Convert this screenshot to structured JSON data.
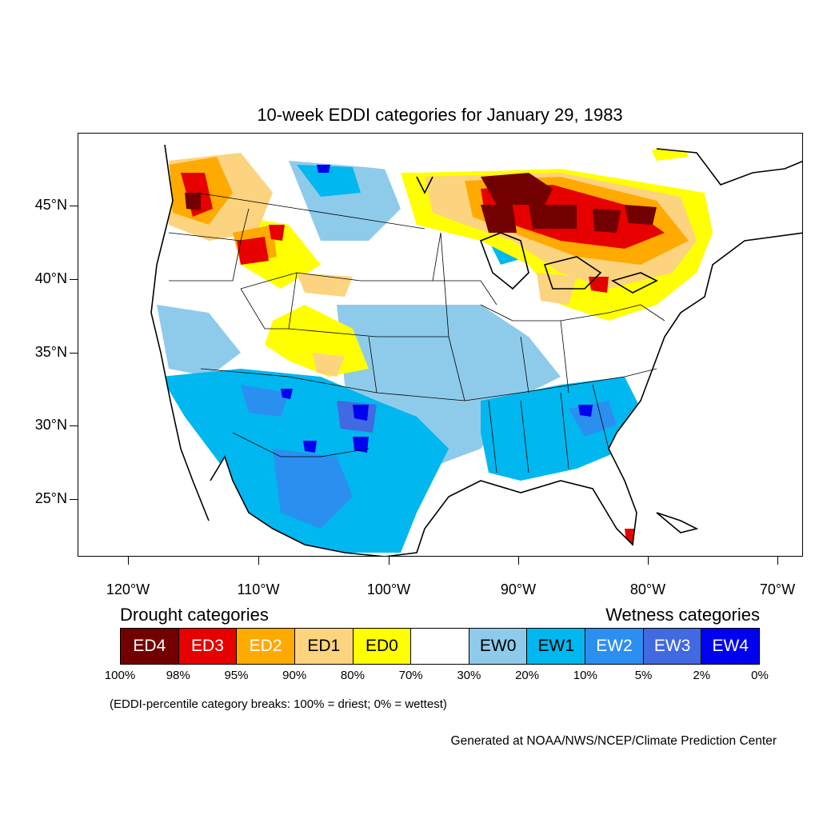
{
  "title": "10-week EDDI categories for January 29, 1983",
  "map": {
    "projection": "Lambert conformal (CONUS)",
    "lat_labels": [
      "45°N",
      "40°N",
      "35°N",
      "30°N",
      "25°N"
    ],
    "lon_labels": [
      "120°W",
      "110°W",
      "100°W",
      "90°W",
      "80°W",
      "70°W"
    ],
    "regions": [
      {
        "name": "Pacific Northwest",
        "category": "ED2"
      },
      {
        "name": "Upper Great Lakes / Northern Ontario",
        "category": "ED4"
      },
      {
        "name": "Southern Ontario / Quebec",
        "category": "ED3"
      },
      {
        "name": "Northern Rockies",
        "category": "ED1"
      },
      {
        "name": "Central High Plains",
        "category": "ED0"
      },
      {
        "name": "Southwest US / Northern Mexico",
        "category": "EW1"
      },
      {
        "name": "Southern Plains / Texas",
        "category": "EW1"
      },
      {
        "name": "Southeast US",
        "category": "EW1"
      },
      {
        "name": "Central Plains",
        "category": "EW0"
      },
      {
        "name": "Ohio Valley",
        "category": "none"
      }
    ]
  },
  "legend": {
    "drought_heading": "Drought categories",
    "wetness_heading": "Wetness categories",
    "categories": [
      {
        "label": "ED4",
        "color": "#730000",
        "text_color": "#ffffff"
      },
      {
        "label": "ED3",
        "color": "#e60000",
        "text_color": "#ffffff"
      },
      {
        "label": "ED2",
        "color": "#ffaa00",
        "text_color": "#ffffff"
      },
      {
        "label": "ED1",
        "color": "#fcd37f",
        "text_color": "#000000"
      },
      {
        "label": "ED0",
        "color": "#ffff00",
        "text_color": "#000000"
      },
      {
        "label": "",
        "color": "#ffffff",
        "text_color": "#000000"
      },
      {
        "label": "EW0",
        "color": "#8ecbeb",
        "text_color": "#000000"
      },
      {
        "label": "EW1",
        "color": "#00b7ef",
        "text_color": "#000000"
      },
      {
        "label": "EW2",
        "color": "#2b8ff0",
        "text_color": "#ffffff"
      },
      {
        "label": "EW3",
        "color": "#4169e1",
        "text_color": "#ffffff"
      },
      {
        "label": "EW4",
        "color": "#0000f0",
        "text_color": "#ffffff"
      }
    ],
    "percentile_breaks": [
      "100%",
      "98%",
      "95%",
      "90%",
      "80%",
      "70%",
      "30%",
      "20%",
      "10%",
      "5%",
      "2%",
      "0%"
    ]
  },
  "note": "(EDDI-percentile category breaks: 100% = driest; 0% = wettest)",
  "credit": "Generated at NOAA/NWS/NCEP/Climate Prediction Center"
}
